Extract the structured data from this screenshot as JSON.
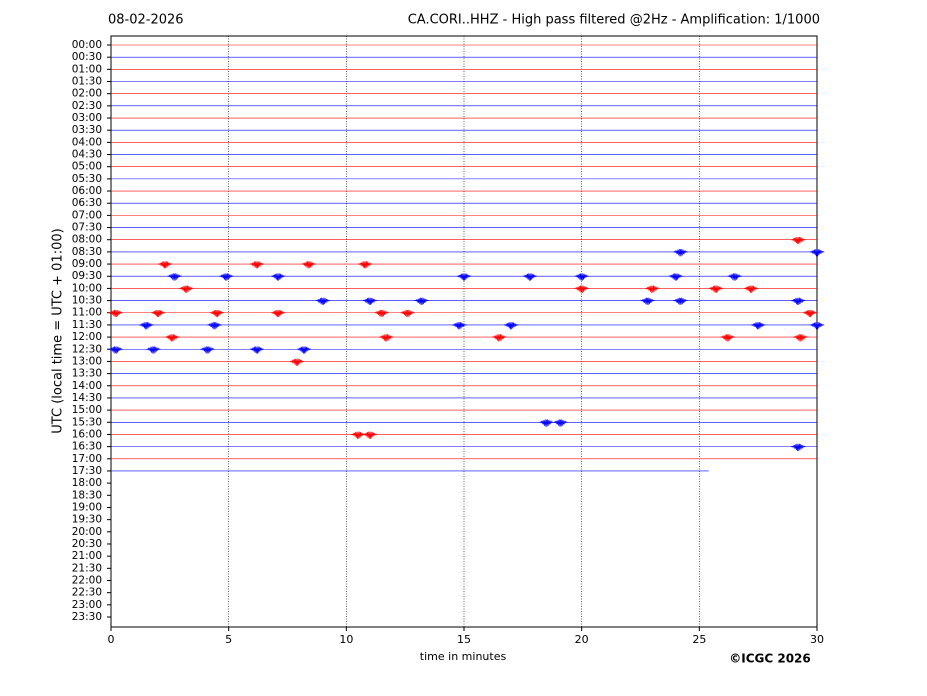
{
  "chart_data": {
    "type": "helicorder",
    "date": "08-02-2026",
    "title": "CA.CORI..HHZ - High pass filtered @2Hz - Amplification: 1/1000",
    "x_label": "time in minutes",
    "y_label": "UTC (local time = UTC + 01:00)",
    "copyright": "©ICGC 2026",
    "colors": [
      "#ff0000",
      "#0000ff"
    ],
    "grid": true,
    "xlim": [
      0,
      30
    ],
    "xticks": [
      0,
      5,
      10,
      15,
      20,
      25,
      30
    ],
    "categories": [
      "00:00",
      "00:30",
      "01:00",
      "01:30",
      "02:00",
      "02:30",
      "03:00",
      "03:30",
      "04:00",
      "04:30",
      "05:00",
      "05:30",
      "06:00",
      "06:30",
      "07:00",
      "07:30",
      "08:00",
      "08:30",
      "09:00",
      "09:30",
      "10:00",
      "10:30",
      "11:00",
      "11:30",
      "12:00",
      "12:30",
      "13:00",
      "13:30",
      "14:00",
      "14:30",
      "15:00",
      "15:30",
      "16:00",
      "16:30",
      "17:00",
      "17:30",
      "18:00",
      "18:30",
      "19:00",
      "19:30",
      "20:00",
      "20:30",
      "21:00",
      "21:30",
      "22:00",
      "22:30",
      "23:00",
      "23:30"
    ],
    "trace_end": [
      30,
      30,
      30,
      30,
      30,
      30,
      30,
      30,
      30,
      30,
      30,
      30,
      30,
      30,
      30,
      30,
      30,
      30,
      30,
      30,
      30,
      30,
      30,
      30,
      30,
      30,
      30,
      30,
      30,
      30,
      30,
      30,
      30,
      30,
      30,
      25.4,
      null,
      null,
      null,
      null,
      null,
      null,
      null,
      null,
      null,
      null,
      null,
      null
    ],
    "bursts": [
      [],
      [],
      [],
      [],
      [],
      [],
      [],
      [],
      [],
      [],
      [],
      [],
      [],
      [],
      [],
      [],
      [
        29.2
      ],
      [
        24.2,
        30
      ],
      [
        2.3,
        6.2,
        8.4,
        10.8
      ],
      [
        2.7,
        4.9,
        7.1,
        15,
        17.8,
        20,
        24,
        26.5
      ],
      [
        3.2,
        20,
        23,
        25.7,
        27.2
      ],
      [
        9,
        11,
        13.2,
        22.8,
        24.2,
        29.2
      ],
      [
        0.2,
        2,
        4.5,
        7.1,
        11.5,
        12.6,
        29.7
      ],
      [
        1.5,
        4.4,
        14.8,
        17,
        27.5,
        30
      ],
      [
        2.6,
        11.7,
        16.5,
        26.2,
        29.3
      ],
      [
        0.2,
        1.8,
        4.1,
        6.2,
        8.2
      ],
      [
        7.9
      ],
      [],
      [],
      [],
      [],
      [
        18.5,
        19.1
      ],
      [
        10.5,
        11.0
      ],
      [
        29.2
      ],
      [],
      [],
      [],
      [],
      [],
      [],
      [],
      [],
      [],
      [],
      [],
      [],
      [],
      []
    ]
  }
}
